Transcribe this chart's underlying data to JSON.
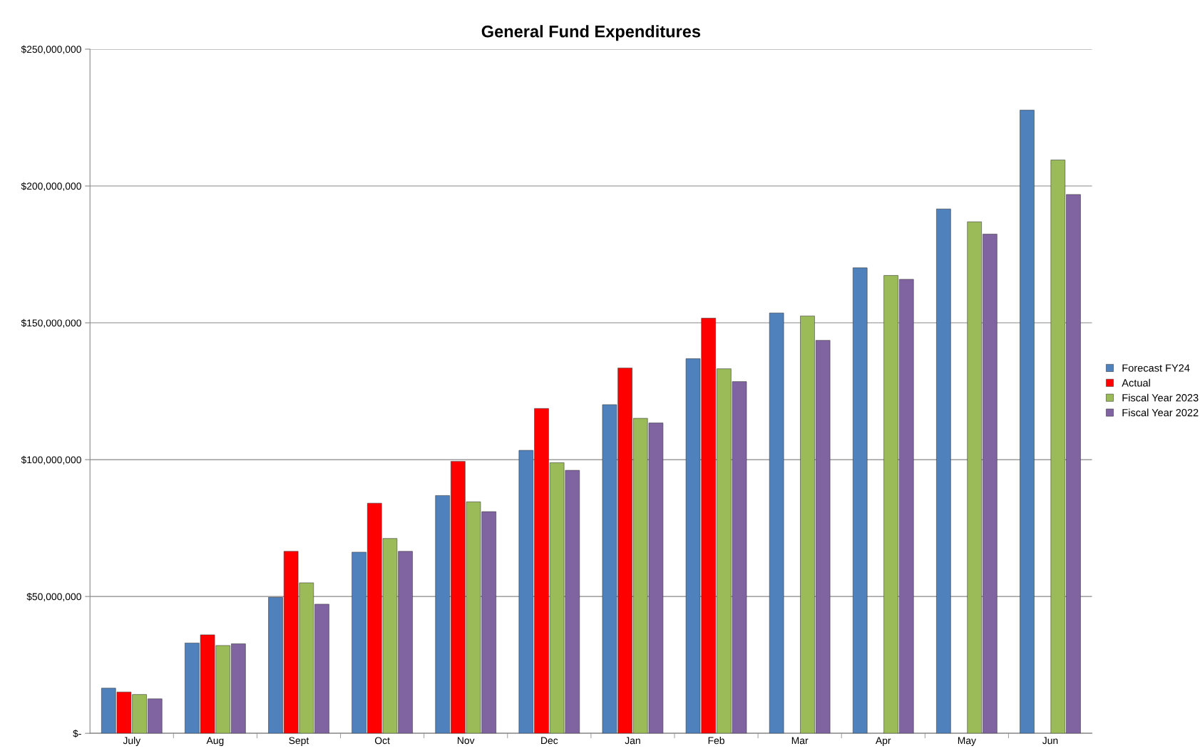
{
  "chart_data": {
    "type": "bar",
    "title": "General Fund Expenditures",
    "categories": [
      "July",
      "Aug",
      "Sept",
      "Oct",
      "Nov",
      "Dec",
      "Jan",
      "Feb",
      "Mar",
      "Apr",
      "May",
      "Jun"
    ],
    "series": [
      {
        "name": "Forecast FY24",
        "color": "#4f81bd",
        "values": [
          16500000,
          33000000,
          49700000,
          66200000,
          86900000,
          103400000,
          120100000,
          136900000,
          153600000,
          170100000,
          191600000,
          227700000
        ]
      },
      {
        "name": "Actual",
        "color": "#ff0000",
        "values": [
          15100000,
          36000000,
          66500000,
          84100000,
          99400000,
          118700000,
          133500000,
          151700000,
          null,
          null,
          null,
          null
        ]
      },
      {
        "name": "Fiscal Year 2023",
        "color": "#9bbb59",
        "values": [
          14200000,
          32100000,
          55000000,
          71200000,
          84600000,
          98900000,
          115100000,
          133200000,
          152500000,
          167300000,
          186900000,
          209500000
        ]
      },
      {
        "name": "Fiscal Year 2022",
        "color": "#8064a2",
        "values": [
          12600000,
          32700000,
          47200000,
          66500000,
          81000000,
          96100000,
          113400000,
          128500000,
          143600000,
          165900000,
          182400000,
          196900000
        ]
      }
    ],
    "ylim": [
      0,
      250000000
    ],
    "yticks": [
      {
        "value": 0,
        "label": "$-"
      },
      {
        "value": 50000000,
        "label": "$50,000,000"
      },
      {
        "value": 100000000,
        "label": "$100,000,000"
      },
      {
        "value": 150000000,
        "label": "$150,000,000"
      },
      {
        "value": 200000000,
        "label": "$200,000,000"
      },
      {
        "value": 250000000,
        "label": "$250,000,000"
      }
    ],
    "grid": "y",
    "legend": "right"
  }
}
